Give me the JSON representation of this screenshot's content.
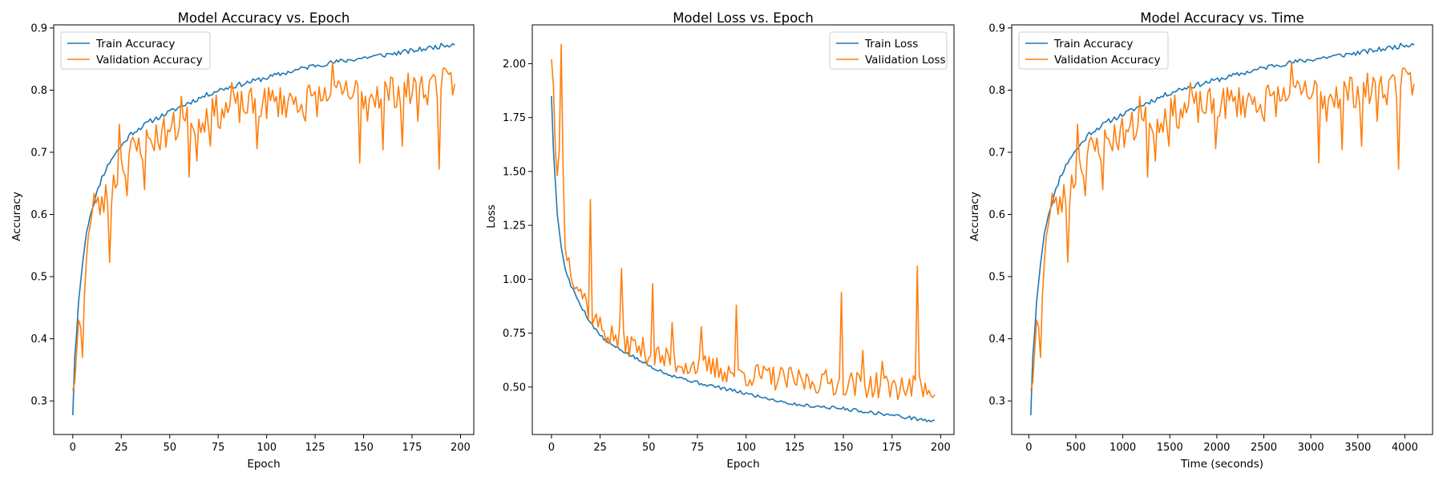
{
  "chart_data": [
    {
      "type": "line",
      "title": "Model Accuracy vs. Epoch",
      "xlabel": "Epoch",
      "ylabel": "Accuracy",
      "xlim": [
        -9.85,
        206.85
      ],
      "ylim": [
        0.246,
        0.905
      ],
      "xticks": [
        0,
        25,
        50,
        75,
        100,
        125,
        150,
        175,
        200
      ],
      "yticks": [
        0.3,
        0.4,
        0.5,
        0.6,
        0.7,
        0.8,
        0.9
      ],
      "ytick_decimals": 1,
      "grid": false,
      "legend": "top-left",
      "x": {
        "start": 0,
        "step": 1,
        "count": 198
      },
      "series": [
        {
          "name": "Train Accuracy",
          "color": "#1f77b4",
          "anchors": [
            [
              0,
              0.277
            ],
            [
              1,
              0.37
            ],
            [
              2,
              0.41
            ],
            [
              3,
              0.46
            ],
            [
              5,
              0.52
            ],
            [
              7,
              0.57
            ],
            [
              9,
              0.6
            ],
            [
              12,
              0.63
            ],
            [
              15,
              0.66
            ],
            [
              20,
              0.69
            ],
            [
              25,
              0.71
            ],
            [
              30,
              0.73
            ],
            [
              40,
              0.75
            ],
            [
              50,
              0.765
            ],
            [
              60,
              0.78
            ],
            [
              75,
              0.8
            ],
            [
              100,
              0.82
            ],
            [
              125,
              0.84
            ],
            [
              150,
              0.852
            ],
            [
              175,
              0.863
            ],
            [
              197,
              0.875
            ]
          ],
          "noise": 0.004,
          "seed": 11
        },
        {
          "name": "Validation Accuracy",
          "color": "#ff7f0e",
          "anchors": [
            [
              0,
              0.317
            ],
            [
              1,
              0.33
            ],
            [
              2,
              0.38
            ],
            [
              3,
              0.43
            ],
            [
              4,
              0.42
            ],
            [
              5,
              0.37
            ],
            [
              6,
              0.47
            ],
            [
              8,
              0.58
            ],
            [
              10,
              0.6
            ],
            [
              13,
              0.61
            ],
            [
              16,
              0.62
            ],
            [
              20,
              0.64
            ],
            [
              25,
              0.68
            ],
            [
              30,
              0.7
            ],
            [
              40,
              0.72
            ],
            [
              50,
              0.735
            ],
            [
              60,
              0.75
            ],
            [
              75,
              0.765
            ],
            [
              100,
              0.78
            ],
            [
              125,
              0.785
            ],
            [
              150,
              0.795
            ],
            [
              175,
              0.8
            ],
            [
              197,
              0.81
            ]
          ],
          "noise": 0.028,
          "seed": 23,
          "spikes": [
            [
              11,
              0.634
            ],
            [
              19,
              0.523
            ],
            [
              24,
              0.745
            ],
            [
              28,
              0.63
            ],
            [
              37,
              0.64
            ],
            [
              56,
              0.79
            ],
            [
              60,
              0.66
            ],
            [
              64,
              0.686
            ],
            [
              71,
              0.71
            ],
            [
              82,
              0.812
            ],
            [
              95,
              0.706
            ],
            [
              120,
              0.75
            ],
            [
              134,
              0.845
            ],
            [
              148,
              0.683
            ],
            [
              152,
              0.75
            ],
            [
              160,
              0.704
            ],
            [
              170,
              0.71
            ],
            [
              178,
              0.75
            ],
            [
              186,
              0.825
            ],
            [
              189,
              0.673
            ],
            [
              191,
              0.835
            ],
            [
              193,
              0.83
            ],
            [
              197,
              0.81
            ]
          ]
        }
      ]
    },
    {
      "type": "line",
      "title": "Model Loss vs. Epoch",
      "xlabel": "Epoch",
      "ylabel": "Loss",
      "xlim": [
        -9.85,
        206.85
      ],
      "ylim": [
        0.28,
        2.18
      ],
      "xticks": [
        0,
        25,
        50,
        75,
        100,
        125,
        150,
        175,
        200
      ],
      "yticks": [
        0.5,
        0.75,
        1.0,
        1.25,
        1.5,
        1.75,
        2.0
      ],
      "ytick_decimals": 2,
      "grid": false,
      "legend": "top-right",
      "x": {
        "start": 0,
        "step": 1,
        "count": 198
      },
      "series": [
        {
          "name": "Train Loss",
          "color": "#1f77b4",
          "anchors": [
            [
              0,
              1.85
            ],
            [
              1,
              1.6
            ],
            [
              2,
              1.45
            ],
            [
              3,
              1.3
            ],
            [
              5,
              1.15
            ],
            [
              7,
              1.05
            ],
            [
              10,
              0.97
            ],
            [
              15,
              0.88
            ],
            [
              20,
              0.8
            ],
            [
              25,
              0.74
            ],
            [
              30,
              0.7
            ],
            [
              40,
              0.65
            ],
            [
              50,
              0.6
            ],
            [
              60,
              0.56
            ],
            [
              75,
              0.52
            ],
            [
              100,
              0.47
            ],
            [
              125,
              0.42
            ],
            [
              150,
              0.4
            ],
            [
              175,
              0.37
            ],
            [
              197,
              0.34
            ]
          ],
          "noise": 0.008,
          "seed": 5
        },
        {
          "name": "Validation Loss",
          "color": "#ff7f0e",
          "anchors": [
            [
              0,
              2.02
            ],
            [
              1,
              1.9
            ],
            [
              2,
              1.6
            ],
            [
              3,
              1.48
            ],
            [
              4,
              1.6
            ],
            [
              5,
              2.09
            ],
            [
              6,
              1.5
            ],
            [
              7,
              1.15
            ],
            [
              10,
              1.05
            ],
            [
              15,
              0.95
            ],
            [
              20,
              0.85
            ],
            [
              25,
              0.78
            ],
            [
              30,
              0.74
            ],
            [
              40,
              0.7
            ],
            [
              50,
              0.66
            ],
            [
              60,
              0.62
            ],
            [
              75,
              0.6
            ],
            [
              100,
              0.56
            ],
            [
              125,
              0.53
            ],
            [
              150,
              0.52
            ],
            [
              175,
              0.5
            ],
            [
              197,
              0.5
            ]
          ],
          "noise": 0.06,
          "seed": 37,
          "spikes": [
            [
              20,
              1.37
            ],
            [
              36,
              1.05
            ],
            [
              52,
              0.98
            ],
            [
              62,
              0.8
            ],
            [
              77,
              0.78
            ],
            [
              95,
              0.88
            ],
            [
              149,
              0.94
            ],
            [
              160,
              0.67
            ],
            [
              170,
              0.62
            ],
            [
              188,
              1.06
            ]
          ]
        }
      ]
    },
    {
      "type": "line",
      "title": "Model Accuracy vs. Time",
      "xlabel": "Time (seconds)",
      "ylabel": "Accuracy",
      "xlim": [
        -182,
        4295
      ],
      "ylim": [
        0.246,
        0.905
      ],
      "xticks": [
        0,
        500,
        1000,
        1500,
        2000,
        2500,
        3000,
        3500,
        4000
      ],
      "yticks": [
        0.3,
        0.4,
        0.5,
        0.6,
        0.7,
        0.8,
        0.9
      ],
      "ytick_decimals": 1,
      "grid": false,
      "legend": "top-left",
      "x": {
        "start": 21,
        "step": 20.7,
        "count": 198
      },
      "series_from_chart": 0
    }
  ]
}
